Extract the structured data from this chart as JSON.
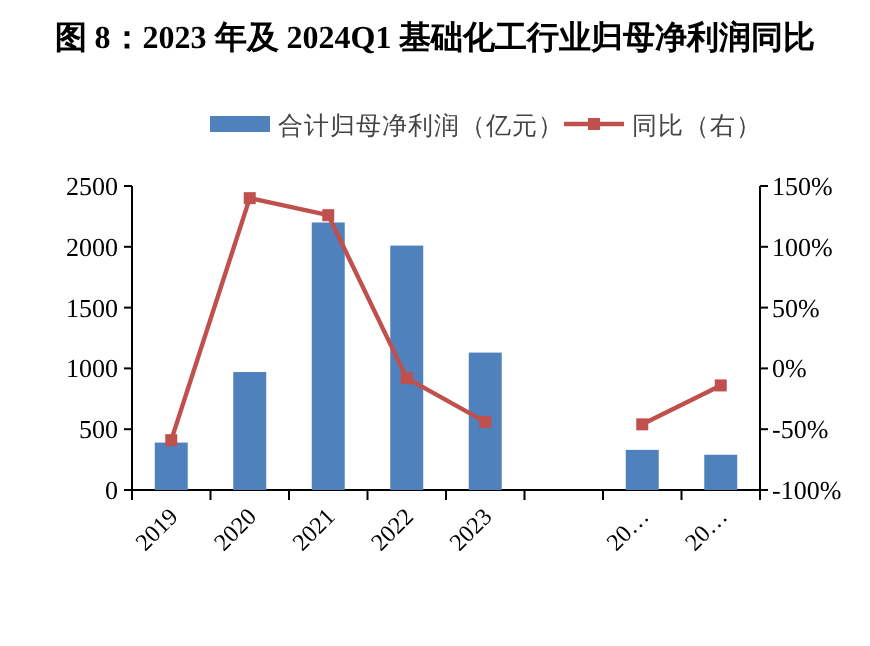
{
  "chart_data": {
    "type": "bar",
    "title": "图 8：2023 年及 2024Q1 基础化工行业归母净利润同比",
    "categories": [
      "2019",
      "2020",
      "2021",
      "2022",
      "2023",
      null,
      "20…",
      "20…"
    ],
    "series": [
      {
        "name": "合计归母净利润（亿元）",
        "color": "#4f81bd",
        "values": [
          390,
          970,
          2200,
          2010,
          1130,
          null,
          330,
          290
        ]
      },
      {
        "name": "同比（右）",
        "type": "line",
        "axis": "y2",
        "color": "#c0504d",
        "marker": "square",
        "values": [
          -59,
          140,
          126,
          -8,
          -44,
          null,
          -46,
          -14
        ]
      }
    ],
    "ylim": [
      0,
      2500
    ],
    "yticks": [
      0,
      500,
      1000,
      1500,
      2000,
      2500
    ],
    "y2lim": [
      -100,
      150
    ],
    "y2ticks": [
      {
        "value": -100,
        "label": "-100%"
      },
      {
        "value": -50,
        "label": "-50%"
      },
      {
        "value": 0,
        "label": "0%"
      },
      {
        "value": 50,
        "label": "50%"
      },
      {
        "value": 100,
        "label": "100%"
      },
      {
        "value": 150,
        "label": "150%"
      }
    ],
    "grid": false,
    "legend": "top"
  }
}
